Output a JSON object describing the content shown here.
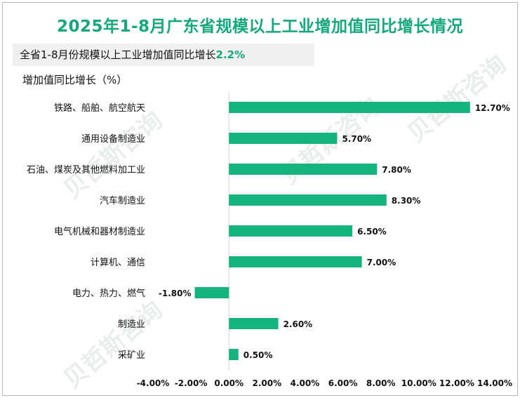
{
  "title": "2025年1-8月广东省规模以上工业增加值同比增长情况",
  "subtitle": {
    "text": "全省1-8月份规模以上工业增加值同比增长",
    "value": "2.2%",
    "accent_color": "#14a87b"
  },
  "watermark": "贝哲斯咨询",
  "chart_data": {
    "type": "bar",
    "orientation": "horizontal",
    "title": "2025年1-8月广东省规模以上工业增加值同比增长情况",
    "ylabel": "增加值同比增长（%）",
    "xlabel": "",
    "categories": [
      "铁路、船舶、航空航天",
      "通用设备制造业",
      "石油、煤炭及其他燃料加工业",
      "汽车制造业",
      "电气机械和器材制造业",
      "计算机、通信",
      "电力、热力、燃气",
      "制造业",
      "采矿业"
    ],
    "values": [
      12.7,
      5.7,
      7.8,
      8.3,
      6.5,
      7.0,
      -1.8,
      2.6,
      0.5
    ],
    "value_labels": [
      "12.70%",
      "5.70%",
      "7.80%",
      "8.30%",
      "6.50%",
      "7.00%",
      "-1.80%",
      "2.60%",
      "0.50%"
    ],
    "xlim": [
      -4,
      14
    ],
    "xticks": [
      -4,
      -2,
      0,
      2,
      4,
      6,
      8,
      10,
      12,
      14
    ],
    "xtick_labels": [
      "-4.00%",
      "-2.00%",
      "0.00%",
      "2.00%",
      "4.00%",
      "6.00%",
      "8.00%",
      "10.00%",
      "12.00%",
      "14.00%"
    ],
    "bar_color": "#14b47e",
    "grid": false,
    "legend": "none"
  }
}
